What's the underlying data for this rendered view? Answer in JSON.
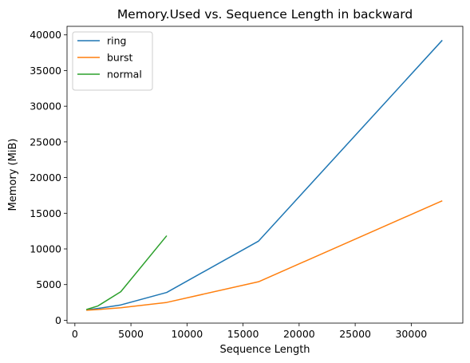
{
  "chart_data": {
    "type": "line",
    "title": "Memory.Used vs. Sequence Length in backward",
    "xlabel": "Sequence Length",
    "ylabel": "Memory (MiB)",
    "xlim": [
      -700,
      34600
    ],
    "ylim": [
      -400,
      41200
    ],
    "xticks": [
      0,
      5000,
      10000,
      15000,
      20000,
      25000,
      30000
    ],
    "yticks": [
      0,
      5000,
      10000,
      15000,
      20000,
      25000,
      30000,
      35000,
      40000
    ],
    "legend_position": "top-left",
    "grid": false,
    "series": [
      {
        "name": "ring",
        "color": "#1f77b4",
        "x": [
          1024,
          2048,
          4096,
          8192,
          16384,
          32768
        ],
        "y": [
          1450,
          1650,
          2150,
          3900,
          11100,
          39250
        ]
      },
      {
        "name": "burst",
        "color": "#ff7f0e",
        "x": [
          1024,
          2048,
          4096,
          8192,
          16384,
          32768
        ],
        "y": [
          1400,
          1500,
          1750,
          2500,
          5400,
          16750
        ]
      },
      {
        "name": "normal",
        "color": "#2ca02c",
        "x": [
          1024,
          2048,
          4096,
          8192
        ],
        "y": [
          1500,
          2000,
          4000,
          11850
        ]
      }
    ]
  }
}
